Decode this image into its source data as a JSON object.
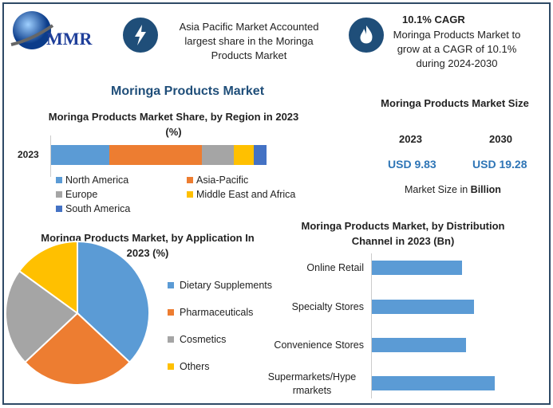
{
  "logo": {
    "text": "MMR"
  },
  "header": {
    "highlight1": "Asia Pacific Market Accounted largest share in the Moringa Products Market",
    "cagr_title": "10.1% CAGR",
    "cagr_text": "Moringa Products Market to grow at a CAGR of 10.1% during 2024-2030"
  },
  "main_title": "Moringa Products Market",
  "size_panel": {
    "title": "Moringa Products Market Size",
    "year1": "2023",
    "year2": "2030",
    "value1": "USD 9.83",
    "value2": "USD 19.28",
    "note_prefix": "Market Size in ",
    "note_bold": "Billion"
  },
  "colors": {
    "na": "#5b9bd5",
    "ap": "#ed7d31",
    "eu": "#a5a5a5",
    "mea": "#ffc000",
    "sa": "#4472c4",
    "dist": "#5b9bd5"
  },
  "chart_data": [
    {
      "type": "bar",
      "stacked": true,
      "orientation": "horizontal",
      "title": "Moringa Products Market Share, by Region in 2023 (%)",
      "categories": [
        "2023"
      ],
      "series": [
        {
          "name": "North America",
          "values": [
            27
          ]
        },
        {
          "name": "Asia-Pacific",
          "values": [
            43
          ]
        },
        {
          "name": "Europe",
          "values": [
            15
          ]
        },
        {
          "name": "Middle East and Africa",
          "values": [
            9
          ]
        },
        {
          "name": "South America",
          "values": [
            6
          ]
        }
      ],
      "legend": "bottom"
    },
    {
      "type": "pie",
      "title": "Moringa Products Market, by Application In 2023 (%)",
      "labels": [
        "Dietary Supplements",
        "Pharmaceuticals",
        "Cosmetics",
        "Others"
      ],
      "values": [
        37,
        26,
        22,
        15
      ],
      "legend": "right"
    },
    {
      "type": "bar",
      "orientation": "horizontal",
      "title": "Moringa Products Market, by Distribution Channel in 2023 (Bn)",
      "categories": [
        "Online Retail",
        "Specialty Stores",
        "Convenience Stores",
        "Supermarkets/Hypermarkets"
      ],
      "category_display": [
        "Online Retail",
        "Specialty Stores",
        "Convenience Stores",
        "Supermarkets/Hype rmarkets"
      ],
      "values": [
        2.2,
        2.5,
        2.3,
        3.0
      ]
    }
  ]
}
